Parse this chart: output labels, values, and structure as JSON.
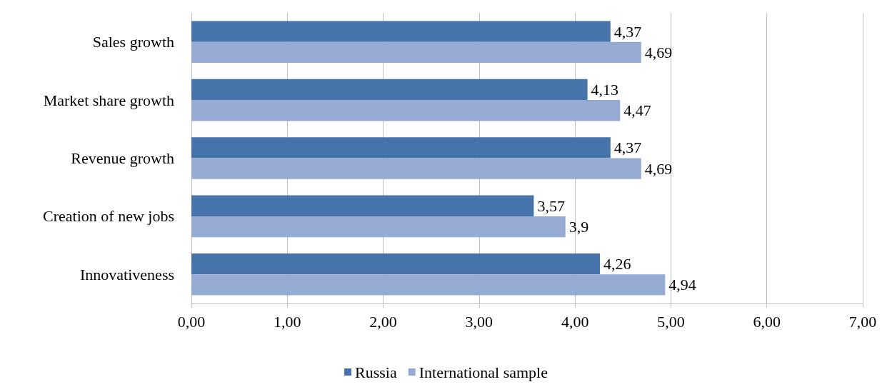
{
  "chart_data": {
    "type": "bar",
    "orientation": "horizontal",
    "categories": [
      "Sales growth",
      "Market share growth",
      "Revenue growth",
      "Creation of new jobs",
      "Innovativeness"
    ],
    "series": [
      {
        "name": "Russia",
        "color": "#4674aa",
        "values": [
          4.37,
          4.13,
          4.37,
          3.57,
          4.26
        ],
        "value_labels": [
          "4,37",
          "4,13",
          "4,37",
          "3,57",
          "4,26"
        ]
      },
      {
        "name": "International sample",
        "color": "#95abd4",
        "values": [
          4.69,
          4.47,
          4.69,
          3.9,
          4.94
        ],
        "value_labels": [
          "4,69",
          "4,47",
          "4,69",
          "3,9",
          "4,94"
        ]
      }
    ],
    "xlim": [
      0,
      7
    ],
    "xticks": [
      {
        "value": 0,
        "label": "0,00"
      },
      {
        "value": 1,
        "label": "1,00"
      },
      {
        "value": 2,
        "label": "2,00"
      },
      {
        "value": 3,
        "label": "3,00"
      },
      {
        "value": 4,
        "label": "4,00"
      },
      {
        "value": 5,
        "label": "5,00"
      },
      {
        "value": 6,
        "label": "6,00"
      },
      {
        "value": 7,
        "label": "7,00"
      }
    ],
    "grid": "x",
    "legend": "bottom"
  }
}
